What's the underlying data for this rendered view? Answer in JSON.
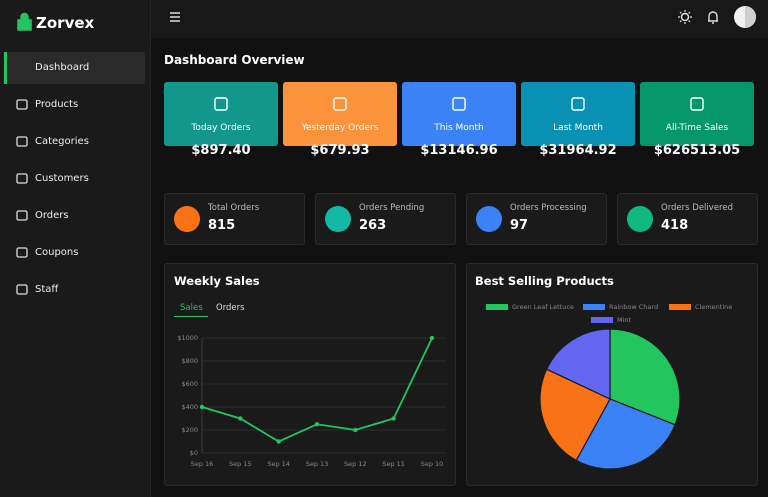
{
  "sidebar": {
    "brand": "Zorvex",
    "items": [
      "Dashboard",
      "Products",
      "Categories",
      "Customers",
      "Orders",
      "Coupons",
      "Staff"
    ]
  },
  "page_title": "Dashboard Overview",
  "summary_cards": [
    {
      "label": "Today Orders",
      "value": "$897.40",
      "color": "#13968b"
    },
    {
      "label": "Yesterday Orders",
      "value": "$679.93",
      "color": "#fb923c"
    },
    {
      "label": "This Month",
      "value": "$13146.96",
      "color": "#3b82f6"
    },
    {
      "label": "Last Month",
      "value": "$31964.92",
      "color": "#0891b2"
    },
    {
      "label": "All-Time Sales",
      "value": "$626513.05",
      "color": "#059669"
    }
  ],
  "stat_cards": [
    {
      "label": "Total Orders",
      "value": 815,
      "color": "#f97316"
    },
    {
      "label": "Orders Pending",
      "value": 263,
      "color": "#14b8a6"
    },
    {
      "label": "Orders Processing",
      "value": 97,
      "color": "#3b82f6"
    },
    {
      "label": "Orders Delivered",
      "value": 418,
      "color": "#10b981"
    }
  ],
  "weekly_sales": {
    "title": "Weekly Sales",
    "tabs": [
      "Sales",
      "Orders"
    ],
    "chart_data": {
      "type": "line",
      "categories": [
        "Sep 16",
        "Sep 15",
        "Sep 14",
        "Sep 13",
        "Sep 12",
        "Sep 11",
        "Sep 10"
      ],
      "series": [
        {
          "name": "Sales",
          "color": "#22c55e",
          "values": [
            400,
            300,
            100,
            250,
            200,
            300,
            1000
          ]
        }
      ],
      "ylim": [
        0,
        1000
      ],
      "yticks": [
        {
          "value": 0,
          "label": "$0"
        },
        {
          "value": 200,
          "label": "$200"
        },
        {
          "value": 400,
          "label": "$400"
        },
        {
          "value": 600,
          "label": "$600"
        },
        {
          "value": 800,
          "label": "$800"
        },
        {
          "value": 1000,
          "label": "$1000"
        }
      ],
      "grid": true
    }
  },
  "best_selling": {
    "title": "Best Selling Products",
    "chart_data": {
      "type": "pie",
      "categories": [
        "Green Leaf Lettuce",
        "Rainbow Chard",
        "Clementine",
        "Mint"
      ],
      "values": [
        31,
        27,
        24,
        18
      ],
      "colors": [
        "#22c55e",
        "#3b82f6",
        "#f97316",
        "#6366f1"
      ]
    }
  }
}
